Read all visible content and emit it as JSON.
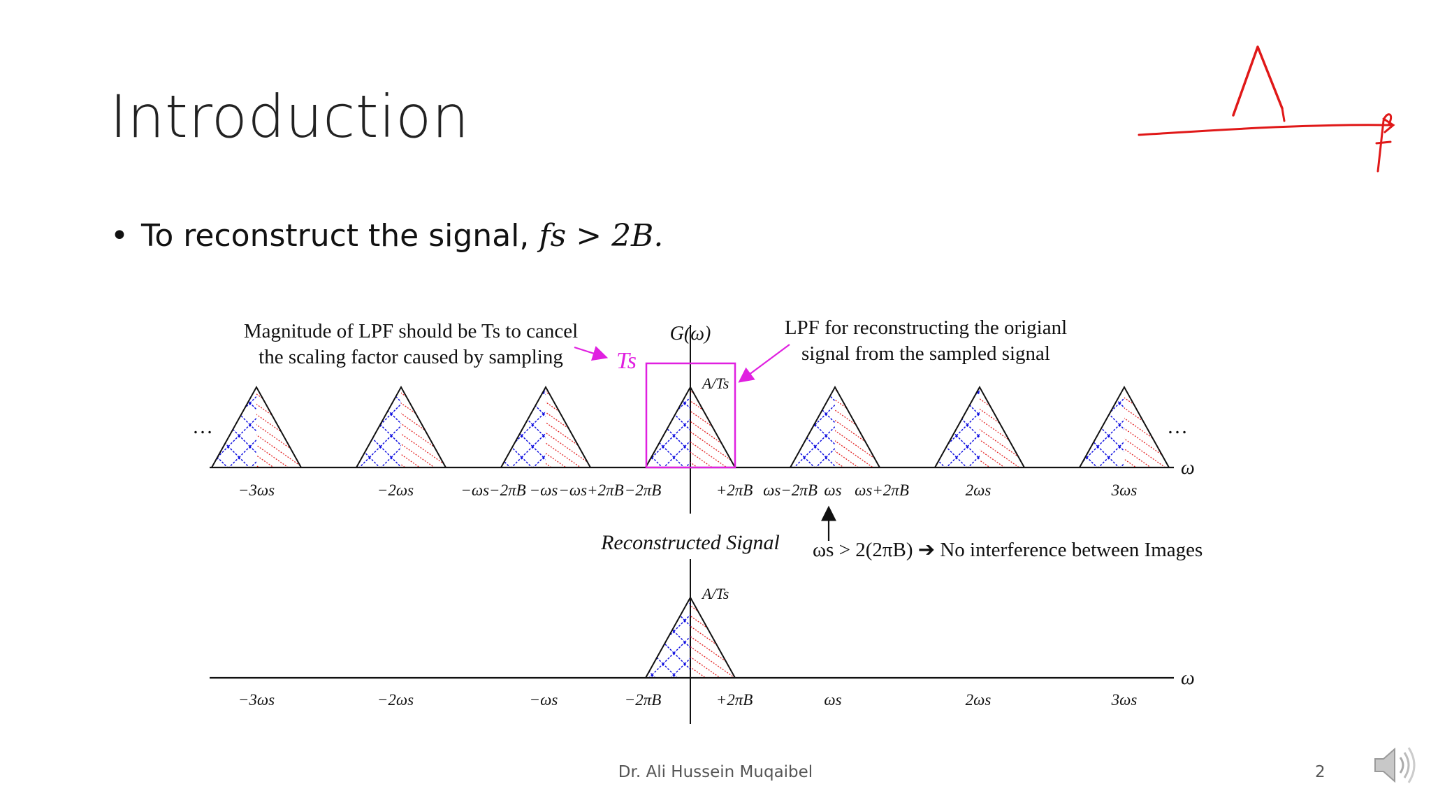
{
  "slide": {
    "title": "Introduction",
    "bullet": {
      "prefix": "To reconstruct the signal, ",
      "math": "fs > 2B."
    },
    "footer": "Dr. Ali Hussein Muqaibel",
    "page_number": "2"
  },
  "figure": {
    "note_left_line1": "Magnitude of LPF should be Ts to cancel",
    "note_left_line2": "the scaling factor caused by sampling",
    "note_right_line1": "LPF for reconstructing the origianl",
    "note_right_line2": "signal from the sampled signal",
    "top_axis_label": "G(ω)",
    "lpf_height_label": "Ts",
    "peak_label": "A/Ts",
    "omega_label": "ω",
    "ellipsis": "…",
    "top_ticks": [
      "−3ωs",
      "−2ωs",
      "−ωs−2πB",
      "−ωs",
      "−ωs+2πB",
      "−2πB",
      "+2πB",
      "ωs−2πB",
      "ωs",
      "ωs+2πB",
      "2ωs",
      "3ωs"
    ],
    "condition_text": "ωs > 2(2πB) ➔ No interference between Images",
    "reconstructed_label": "Reconstructed Signal",
    "bottom_ticks": [
      "−3ωs",
      "−2ωs",
      "−ωs",
      "−2πB",
      "+2πB",
      "ωs",
      "2ωs",
      "3ωs"
    ]
  },
  "colors": {
    "magenta": "#e020e0",
    "hatch_blue": "#1010e0",
    "hatch_red": "#e01010",
    "ink_red": "#e01818"
  },
  "icons": {
    "speaker": "speaker-icon"
  }
}
